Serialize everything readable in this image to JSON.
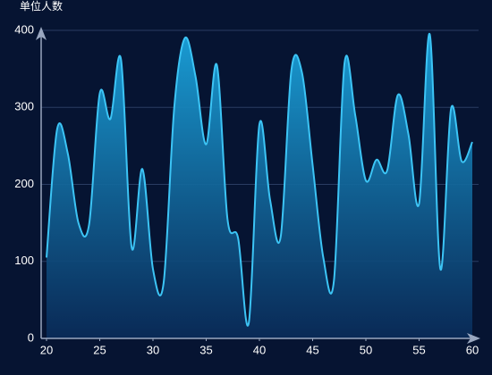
{
  "chart_data": {
    "type": "area",
    "y_axis_label": "单位人数",
    "x": [
      20,
      21,
      22,
      23,
      24,
      25,
      26,
      27,
      28,
      29,
      30,
      31,
      32,
      33,
      34,
      35,
      36,
      37,
      38,
      39,
      40,
      41,
      42,
      43,
      44,
      45,
      46,
      47,
      48,
      49,
      50,
      51,
      52,
      53,
      54,
      55,
      56,
      57,
      58,
      59,
      60
    ],
    "values": [
      105,
      272,
      240,
      150,
      148,
      318,
      285,
      362,
      118,
      220,
      90,
      72,
      300,
      390,
      340,
      252,
      355,
      155,
      130,
      20,
      278,
      180,
      132,
      348,
      345,
      225,
      105,
      75,
      358,
      290,
      205,
      232,
      218,
      316,
      265,
      175,
      395,
      90,
      298,
      230,
      255
    ],
    "color": "#3cc4f5",
    "xlim": [
      20,
      60
    ],
    "xticks": [
      20,
      25,
      30,
      35,
      40,
      45,
      50,
      55,
      60
    ],
    "ylim": [
      0,
      400
    ],
    "yticks": [
      0,
      100,
      200,
      300,
      400
    ],
    "grid": true
  }
}
